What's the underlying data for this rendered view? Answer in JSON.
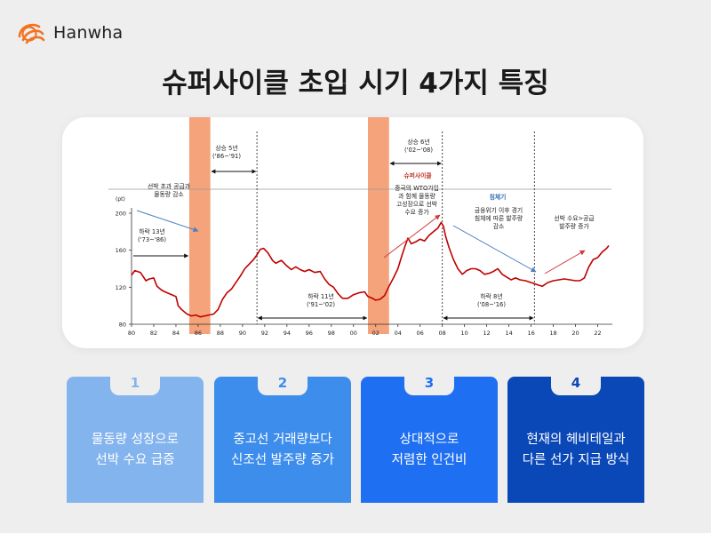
{
  "brand": {
    "name": "Hanwha",
    "color": "#f37321"
  },
  "title": "슈퍼사이클 초입 시기 4가지 특징",
  "chart_data": {
    "type": "line",
    "unit": "(pt)",
    "x_range": [
      80,
      23
    ],
    "x_ticks": [
      "80",
      "82",
      "84",
      "86",
      "88",
      "90",
      "92",
      "94",
      "96",
      "98",
      "00",
      "02",
      "04",
      "06",
      "08",
      "10",
      "12",
      "14",
      "16",
      "18",
      "20",
      "22"
    ],
    "ylim": [
      80,
      200
    ],
    "y_ticks": [
      "200",
      "160",
      "120",
      "80"
    ],
    "series": [
      {
        "color": "#c00000",
        "points": [
          [
            80.0,
            133
          ],
          [
            80.3,
            138
          ],
          [
            80.8,
            136
          ],
          [
            81.3,
            127
          ],
          [
            81.6,
            129
          ],
          [
            82.0,
            130
          ],
          [
            82.3,
            121
          ],
          [
            82.7,
            117
          ],
          [
            83.0,
            115
          ],
          [
            83.4,
            113
          ],
          [
            83.8,
            111
          ],
          [
            84.0,
            110
          ],
          [
            84.2,
            100
          ],
          [
            84.5,
            96
          ],
          [
            84.8,
            93
          ],
          [
            85.0,
            91
          ],
          [
            85.4,
            89
          ],
          [
            85.8,
            90
          ],
          [
            86.2,
            88
          ],
          [
            86.6,
            89
          ],
          [
            87.0,
            90
          ],
          [
            87.4,
            91
          ],
          [
            87.8,
            96
          ],
          [
            88.2,
            107
          ],
          [
            88.6,
            114
          ],
          [
            89.0,
            118
          ],
          [
            89.4,
            125
          ],
          [
            89.8,
            132
          ],
          [
            90.2,
            140
          ],
          [
            90.6,
            145
          ],
          [
            91.0,
            150
          ],
          [
            91.3,
            155
          ],
          [
            91.6,
            161
          ],
          [
            91.9,
            162
          ],
          [
            92.3,
            157
          ],
          [
            92.7,
            149
          ],
          [
            93.0,
            146
          ],
          [
            93.5,
            149
          ],
          [
            94.0,
            143
          ],
          [
            94.4,
            139
          ],
          [
            94.8,
            142
          ],
          [
            95.2,
            139
          ],
          [
            95.6,
            137
          ],
          [
            96.0,
            139
          ],
          [
            96.5,
            136
          ],
          [
            97.0,
            137
          ],
          [
            97.4,
            129
          ],
          [
            97.8,
            123
          ],
          [
            98.2,
            120
          ],
          [
            98.6,
            113
          ],
          [
            99.0,
            108
          ],
          [
            99.5,
            108
          ],
          [
            100.0,
            112
          ],
          [
            100.5,
            114
          ],
          [
            101.0,
            115
          ],
          [
            101.3,
            110
          ],
          [
            101.7,
            108
          ],
          [
            102.0,
            106
          ],
          [
            102.4,
            107
          ],
          [
            102.8,
            111
          ],
          [
            103.2,
            121
          ],
          [
            103.6,
            130
          ],
          [
            104.0,
            140
          ],
          [
            104.3,
            152
          ],
          [
            104.6,
            163
          ],
          [
            104.9,
            173
          ],
          [
            105.2,
            167
          ],
          [
            105.6,
            169
          ],
          [
            106.0,
            172
          ],
          [
            106.4,
            170
          ],
          [
            106.8,
            176
          ],
          [
            107.2,
            180
          ],
          [
            107.6,
            184
          ],
          [
            107.9,
            190
          ],
          [
            108.1,
            186
          ],
          [
            108.3,
            175
          ],
          [
            108.6,
            163
          ],
          [
            109.0,
            150
          ],
          [
            109.4,
            140
          ],
          [
            109.8,
            134
          ],
          [
            110.2,
            138
          ],
          [
            110.6,
            140
          ],
          [
            111.0,
            140
          ],
          [
            111.4,
            138
          ],
          [
            111.8,
            134
          ],
          [
            112.2,
            135
          ],
          [
            112.6,
            137
          ],
          [
            113.0,
            140
          ],
          [
            113.4,
            134
          ],
          [
            113.8,
            131
          ],
          [
            114.2,
            128
          ],
          [
            114.6,
            130
          ],
          [
            115.0,
            128
          ],
          [
            115.5,
            127
          ],
          [
            116.0,
            125
          ],
          [
            116.5,
            123
          ],
          [
            117.0,
            121
          ],
          [
            117.5,
            125
          ],
          [
            118.0,
            127
          ],
          [
            118.5,
            128
          ],
          [
            119.0,
            129
          ],
          [
            119.5,
            128
          ],
          [
            120.0,
            127
          ],
          [
            120.4,
            127
          ],
          [
            120.8,
            130
          ],
          [
            121.2,
            142
          ],
          [
            121.6,
            150
          ],
          [
            122.0,
            152
          ],
          [
            122.4,
            158
          ],
          [
            122.8,
            162
          ],
          [
            123.0,
            165
          ]
        ]
      }
    ],
    "annotations": {
      "label_oversupply": "선박 초과 공급과\n물동량 감소",
      "label_fall13": "하락 13년\n('73~'86)",
      "label_rise5": "상승 5년\n('86~'91)",
      "label_fall11": "하락 11년\n('91~'02)",
      "label_rise6": "상승 6년\n('02~'08)",
      "label_supercycle": "슈퍼사이클",
      "label_china": "중국의 WTO가입\n과 함께 물동량\n고성장으로 선박\n수요 증가",
      "label_stagnation": "침체기",
      "label_crisis": "금융위기 이후 경기\n침체에 따른 발주량\n감소",
      "label_fall8": "하락 8년\n('08~'16)",
      "label_demand": "선박 수요>공급\n발주량 증가"
    },
    "highlight_color": "#f4a37a"
  },
  "features": [
    {
      "num": "1",
      "line1": "물동량 성장으로",
      "line2": "선박 수요 급증",
      "color": "#84b4ee"
    },
    {
      "num": "2",
      "line1": "중고선 거래량보다",
      "line2": "신조선 발주량 증가",
      "color": "#3d8ded"
    },
    {
      "num": "3",
      "line1": "상대적으로",
      "line2": "저렴한 인건비",
      "color": "#1f6ff2"
    },
    {
      "num": "4",
      "line1": "현재의 헤비테일과",
      "line2": "다른 선가 지급 방식",
      "color": "#0b48b7"
    }
  ]
}
